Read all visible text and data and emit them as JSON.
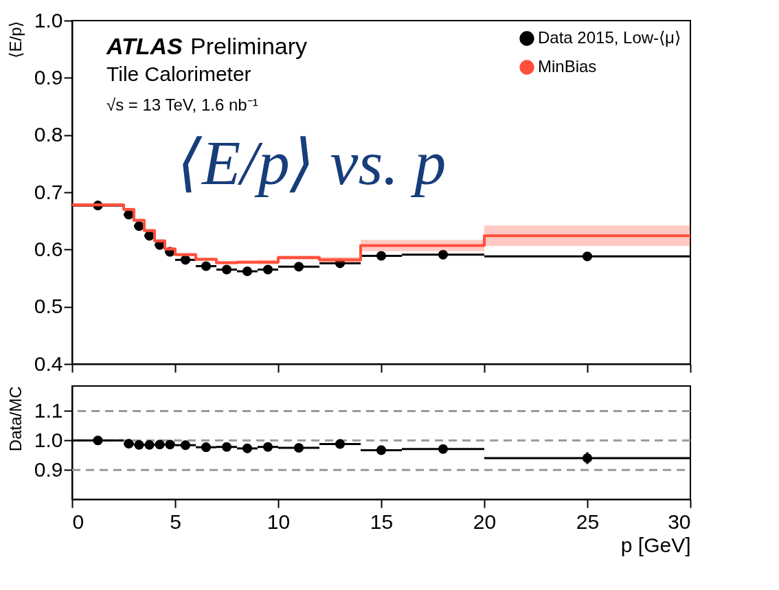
{
  "chart_data": [
    {
      "type": "scatter",
      "ylabel": "⟨E/p⟩",
      "xlim": [
        0,
        30
      ],
      "xticks": [
        0,
        5,
        10,
        15,
        20,
        25,
        30
      ],
      "ylim": [
        0.4,
        1.0
      ],
      "yticks": [
        0.4,
        0.5,
        0.6,
        0.7,
        0.8,
        0.9,
        {
          "value": 1.0,
          "label": "1.0"
        }
      ],
      "tick_labels": "y",
      "grid": false,
      "legend": "top right",
      "marker": "circle",
      "annotations": [
        "ATLAS",
        "Preliminary",
        "Tile Calorimeter",
        "√s = 13 TeV, 1.6 nb⁻¹",
        "⟨E/p⟩ vs. p"
      ],
      "series": [
        {
          "name": "Data 2015, Low-⟨μ⟩",
          "color": "#000000",
          "x": [
            1.25,
            2.75,
            3.25,
            3.75,
            4.25,
            4.75,
            5.5,
            6.5,
            7.5,
            8.5,
            9.5,
            11,
            13,
            15,
            18,
            25
          ],
          "values": [
            0.677,
            0.661,
            0.641,
            0.624,
            0.608,
            0.596,
            0.582,
            0.571,
            0.565,
            0.562,
            0.565,
            0.57,
            0.576,
            0.589,
            0.591,
            0.588
          ],
          "errors": [
            null,
            null,
            null,
            null,
            null,
            null,
            null,
            null,
            null,
            null,
            null,
            null,
            null,
            null,
            null,
            0.006
          ],
          "xerrors": [
            1.25,
            0.25,
            0.25,
            0.25,
            0.25,
            0.25,
            0.5,
            0.5,
            0.5,
            0.5,
            0.5,
            1,
            1,
            1,
            2,
            5
          ]
        },
        {
          "name": "MinBias",
          "type": "step",
          "color": "#ff4f3a",
          "marker": "none",
          "x": [
            0,
            2.5,
            3,
            3.5,
            4,
            4.5,
            5,
            6,
            7,
            8,
            9,
            10,
            12,
            14,
            20,
            30
          ],
          "values": [
            0.678,
            0.67,
            0.651,
            0.633,
            0.615,
            0.601,
            0.591,
            0.583,
            0.577,
            0.578,
            0.578,
            0.586,
            0.582,
            0.607,
            0.624,
            0.624
          ],
          "lower": [
            0.675,
            0.667,
            0.648,
            0.63,
            0.612,
            0.598,
            0.588,
            0.58,
            0.574,
            0.575,
            0.574,
            0.582,
            0.577,
            0.597,
            0.606,
            0.606
          ],
          "upper": [
            0.681,
            0.673,
            0.654,
            0.636,
            0.618,
            0.604,
            0.594,
            0.586,
            0.58,
            0.581,
            0.582,
            0.59,
            0.587,
            0.617,
            0.642,
            0.642
          ]
        }
      ]
    },
    {
      "type": "scatter",
      "xlabel": "p [GeV]",
      "ylabel": "Data/MC",
      "xlim": [
        0,
        30
      ],
      "xticks": [
        0,
        5,
        10,
        15,
        20,
        25,
        30
      ],
      "ylim": [
        0.8,
        1.185
      ],
      "yticks": [
        0.9,
        {
          "value": 1.0,
          "label": "1.0"
        },
        1.1
      ],
      "grid": false,
      "marker": "circle",
      "ref_lines": [
        {
          "axis": "y",
          "value": 0.9,
          "color": "#999999",
          "line_style": "dashed"
        },
        {
          "axis": "y",
          "value": 1.0,
          "color": "#999999",
          "line_style": "dashed"
        },
        {
          "axis": "y",
          "value": 1.1,
          "color": "#999999",
          "line_style": "dashed"
        }
      ],
      "series": [
        {
          "color": "#000000",
          "x": [
            1.25,
            2.75,
            3.25,
            3.75,
            4.25,
            4.75,
            5.5,
            6.5,
            7.5,
            8.5,
            9.5,
            11,
            13,
            15,
            18,
            25
          ],
          "values": [
            1.0,
            0.989,
            0.985,
            0.985,
            0.986,
            0.986,
            0.984,
            0.977,
            0.978,
            0.973,
            0.978,
            0.975,
            0.988,
            0.967,
            0.971,
            0.94
          ],
          "errors": [
            null,
            null,
            null,
            null,
            null,
            null,
            null,
            null,
            null,
            null,
            null,
            null,
            null,
            0.01,
            0.01,
            0.02
          ],
          "xerrors": [
            1.25,
            0.25,
            0.25,
            0.25,
            0.25,
            0.25,
            0.5,
            0.5,
            0.5,
            0.5,
            0.5,
            1,
            1,
            1,
            2,
            5
          ]
        }
      ]
    }
  ]
}
